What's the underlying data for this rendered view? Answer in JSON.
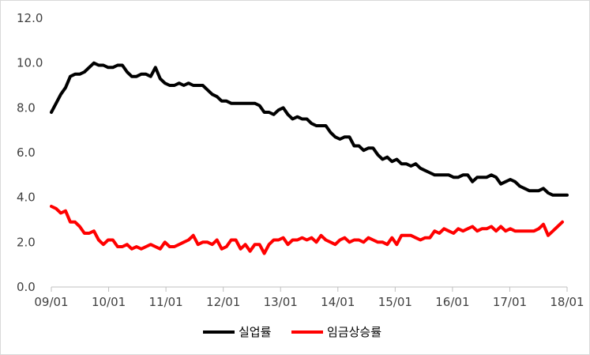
{
  "chart_data": {
    "type": "line",
    "title": "",
    "xlabel": "",
    "ylabel": "",
    "ylim": [
      0,
      12
    ],
    "yticks": [
      "0.0",
      "2.0",
      "4.0",
      "6.0",
      "8.0",
      "10.0",
      "12.0"
    ],
    "xticks": [
      "09/01",
      "10/01",
      "11/01",
      "12/01",
      "13/01",
      "14/01",
      "15/01",
      "16/01",
      "17/01",
      "18/01"
    ],
    "grid": false,
    "legend": "bottom",
    "series": [
      {
        "name": "실업률",
        "color": "#000000",
        "values": [
          7.8,
          8.2,
          8.6,
          8.9,
          9.4,
          9.5,
          9.5,
          9.6,
          9.8,
          10.0,
          9.9,
          9.9,
          9.8,
          9.8,
          9.9,
          9.9,
          9.6,
          9.4,
          9.4,
          9.5,
          9.5,
          9.4,
          9.8,
          9.3,
          9.1,
          9.0,
          9.0,
          9.1,
          9.0,
          9.1,
          9.0,
          9.0,
          9.0,
          8.8,
          8.6,
          8.5,
          8.3,
          8.3,
          8.2,
          8.2,
          8.2,
          8.2,
          8.2,
          8.2,
          8.1,
          7.8,
          7.8,
          7.7,
          7.9,
          8.0,
          7.7,
          7.5,
          7.6,
          7.5,
          7.5,
          7.3,
          7.2,
          7.2,
          7.2,
          6.9,
          6.7,
          6.6,
          6.7,
          6.7,
          6.3,
          6.3,
          6.1,
          6.2,
          6.2,
          5.9,
          5.7,
          5.8,
          5.6,
          5.7,
          5.5,
          5.5,
          5.4,
          5.5,
          5.3,
          5.2,
          5.1,
          5.0,
          5.0,
          5.0,
          5.0,
          4.9,
          4.9,
          5.0,
          5.0,
          4.7,
          4.9,
          4.9,
          4.9,
          5.0,
          4.9,
          4.6,
          4.7,
          4.8,
          4.7,
          4.5,
          4.4,
          4.3,
          4.3,
          4.3,
          4.4,
          4.2,
          4.1,
          4.1,
          4.1,
          4.1
        ]
      },
      {
        "name": "임금상승률",
        "color": "#ff0000",
        "values": [
          3.6,
          3.5,
          3.3,
          3.4,
          2.9,
          2.9,
          2.7,
          2.4,
          2.4,
          2.5,
          2.1,
          1.9,
          2.1,
          2.1,
          1.8,
          1.8,
          1.9,
          1.7,
          1.8,
          1.7,
          1.8,
          1.9,
          1.8,
          1.7,
          2.0,
          1.8,
          1.8,
          1.9,
          2.0,
          2.1,
          2.3,
          1.9,
          2.0,
          2.0,
          1.9,
          2.1,
          1.7,
          1.8,
          2.1,
          2.1,
          1.7,
          1.9,
          1.6,
          1.9,
          1.9,
          1.5,
          1.9,
          2.1,
          2.1,
          2.2,
          1.9,
          2.1,
          2.1,
          2.2,
          2.1,
          2.2,
          2.0,
          2.3,
          2.1,
          2.0,
          1.9,
          2.1,
          2.2,
          2.0,
          2.1,
          2.1,
          2.0,
          2.2,
          2.1,
          2.0,
          2.0,
          1.9,
          2.2,
          1.9,
          2.3,
          2.3,
          2.3,
          2.2,
          2.1,
          2.2,
          2.2,
          2.5,
          2.4,
          2.6,
          2.5,
          2.4,
          2.6,
          2.5,
          2.6,
          2.7,
          2.5,
          2.6,
          2.6,
          2.7,
          2.5,
          2.7,
          2.5,
          2.6,
          2.5,
          2.5,
          2.5,
          2.5,
          2.5,
          2.6,
          2.8,
          2.3,
          2.5,
          2.7,
          2.9
        ]
      }
    ]
  }
}
